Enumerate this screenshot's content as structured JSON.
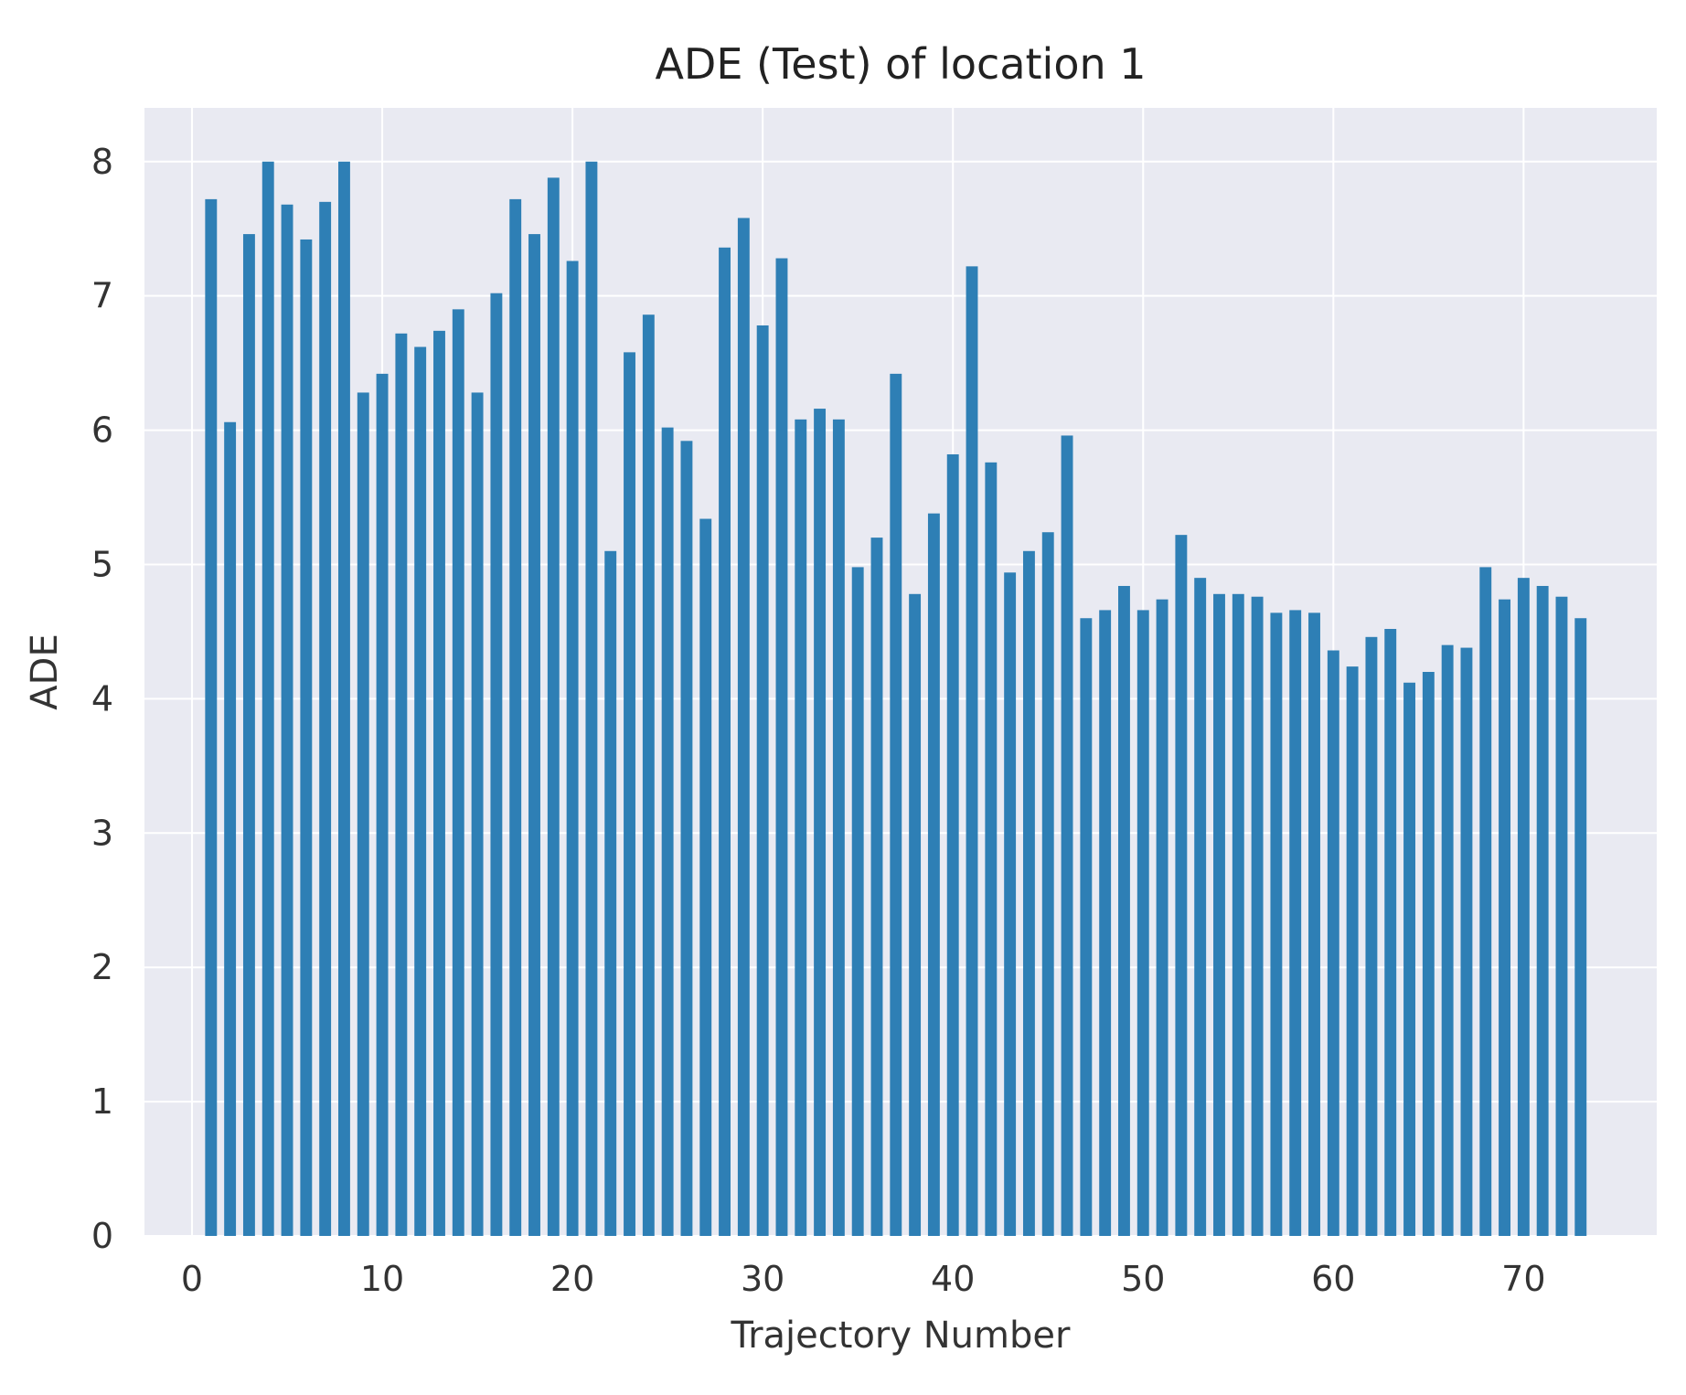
{
  "chart_data": {
    "type": "bar",
    "title": "ADE (Test) of location 1",
    "xlabel": "Trajectory Number",
    "ylabel": "ADE",
    "xlim": [
      -2.5,
      77.0
    ],
    "ylim": [
      0,
      8.4
    ],
    "x_ticks": [
      0,
      10,
      20,
      30,
      40,
      50,
      60,
      70
    ],
    "y_ticks": [
      0,
      1,
      2,
      3,
      4,
      5,
      6,
      7,
      8
    ],
    "grid": true,
    "legend": "none",
    "colors": {
      "bar": "#2e7fb5",
      "plot_bg": "#e9eaf2",
      "grid": "#ffffff"
    },
    "x": [
      1,
      2,
      3,
      4,
      5,
      6,
      7,
      8,
      9,
      10,
      11,
      12,
      13,
      14,
      15,
      16,
      17,
      18,
      19,
      20,
      21,
      22,
      23,
      24,
      25,
      26,
      27,
      28,
      29,
      30,
      31,
      32,
      33,
      34,
      35,
      36,
      37,
      38,
      39,
      40,
      41,
      42,
      43,
      44,
      45,
      46,
      47,
      48,
      49,
      50,
      51,
      52,
      53,
      54,
      55,
      56,
      57,
      58,
      59,
      60,
      61,
      62,
      63,
      64,
      65,
      66,
      67,
      68,
      69,
      70,
      71,
      72,
      73
    ],
    "values": [
      7.72,
      6.06,
      7.46,
      8.0,
      7.68,
      7.42,
      7.7,
      8.0,
      6.28,
      6.42,
      6.72,
      6.62,
      6.74,
      6.9,
      6.28,
      7.02,
      7.72,
      7.46,
      7.88,
      7.26,
      8.0,
      5.1,
      6.58,
      6.86,
      6.02,
      5.92,
      5.34,
      7.36,
      7.58,
      6.78,
      7.28,
      6.08,
      6.16,
      6.08,
      4.98,
      5.2,
      6.42,
      4.78,
      5.38,
      5.82,
      7.22,
      5.76,
      4.94,
      5.1,
      5.24,
      5.96,
      4.6,
      4.66,
      4.84,
      4.66,
      4.74,
      5.22,
      4.9,
      4.78,
      4.78,
      4.76,
      4.64,
      4.66,
      4.64,
      4.36,
      4.24,
      4.46,
      4.52,
      4.12,
      4.2,
      4.4,
      4.38,
      4.98,
      4.74,
      4.9,
      4.84,
      4.76,
      4.6
    ]
  }
}
